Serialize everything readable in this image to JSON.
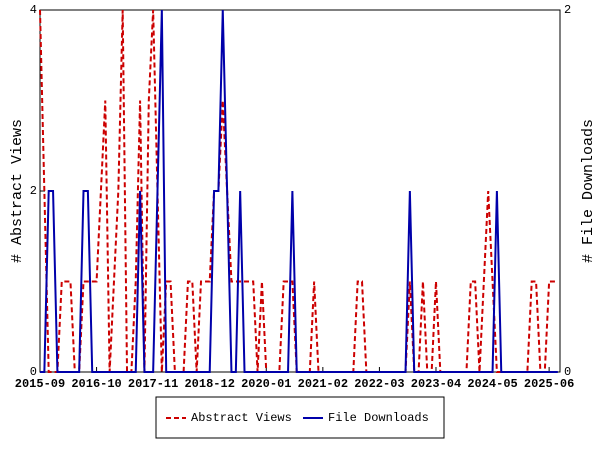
{
  "chart_data": {
    "type": "line",
    "y_label": "# Abstract Views",
    "y2_label": "# File Downloads",
    "categories": [
      "2015-09",
      null,
      null,
      null,
      null,
      null,
      null,
      null,
      null,
      null,
      null,
      null,
      null,
      "2016-10",
      null,
      null,
      null,
      null,
      null,
      null,
      null,
      null,
      null,
      null,
      null,
      null,
      "2017-11",
      null,
      null,
      null,
      null,
      null,
      null,
      null,
      null,
      null,
      null,
      null,
      null,
      "2018-12",
      null,
      null,
      null,
      null,
      null,
      null,
      null,
      null,
      null,
      null,
      null,
      null,
      "2020-01",
      null,
      null,
      null,
      null,
      null,
      null,
      null,
      null,
      null,
      null,
      null,
      null,
      "2021-02",
      null,
      null,
      null,
      null,
      null,
      null,
      null,
      null,
      null,
      null,
      null,
      null,
      "2022-03",
      null,
      null,
      null,
      null,
      null,
      null,
      null,
      null,
      null,
      null,
      null,
      null,
      "2023-04",
      null,
      null,
      null,
      null,
      null,
      null,
      null,
      null,
      null,
      null,
      null,
      null,
      "2024-05",
      null,
      null,
      null,
      null,
      null,
      null,
      null,
      null,
      null,
      null,
      null,
      null,
      "2025-06",
      null,
      null
    ],
    "series": [
      {
        "name": "Abstract Views",
        "color": "#cc0000",
        "dashed": true,
        "values": [
          4,
          2,
          0,
          0,
          0,
          1,
          1,
          1,
          0,
          0,
          1,
          1,
          1,
          1,
          2,
          3,
          0,
          1,
          2,
          4,
          0,
          0,
          1,
          3,
          0,
          3,
          4,
          2,
          0,
          1,
          1,
          0,
          0,
          0,
          1,
          1,
          0,
          1,
          1,
          1,
          2,
          2,
          3,
          2,
          1,
          1,
          1,
          1,
          1,
          1,
          0,
          1,
          0,
          0,
          0,
          0,
          1,
          1,
          1,
          0,
          0,
          0,
          0,
          1,
          0,
          0,
          0,
          0,
          0,
          0,
          0,
          0,
          0,
          1,
          1,
          0,
          0,
          0,
          0,
          0,
          0,
          0,
          0,
          0,
          0,
          1,
          0,
          0,
          1,
          0,
          0,
          1,
          0,
          0,
          0,
          0,
          0,
          0,
          0,
          1,
          1,
          0,
          1,
          2,
          1,
          0,
          0,
          0,
          0,
          0,
          0,
          0,
          0,
          1,
          1,
          0,
          0,
          1,
          1,
          1
        ]
      },
      {
        "name": "File Downloads",
        "color": "#0000aa",
        "dashed": false,
        "axis": "y2",
        "values": [
          0,
          0,
          1,
          1,
          0,
          0,
          0,
          0,
          0,
          0,
          1,
          1,
          0,
          0,
          0,
          0,
          0,
          0,
          0,
          0,
          0,
          0,
          0,
          1,
          0,
          0,
          0,
          1,
          2,
          0,
          0,
          0,
          0,
          0,
          0,
          0,
          0,
          0,
          0,
          0,
          1,
          1,
          2,
          1,
          0,
          0,
          1,
          0,
          0,
          0,
          0,
          0,
          0,
          0,
          0,
          0,
          0,
          0,
          1,
          0,
          0,
          0,
          0,
          0,
          0,
          0,
          0,
          0,
          0,
          0,
          0,
          0,
          0,
          0,
          0,
          0,
          0,
          0,
          0,
          0,
          0,
          0,
          0,
          0,
          0,
          1,
          0,
          0,
          0,
          0,
          0,
          0,
          0,
          0,
          0,
          0,
          0,
          0,
          0,
          0,
          0,
          0,
          0,
          0,
          0,
          1,
          0,
          0,
          0,
          0,
          0,
          0,
          0,
          0,
          0,
          0,
          0,
          0,
          0,
          0
        ]
      }
    ],
    "ylim": [
      0,
      4
    ],
    "yticks": [
      0,
      2,
      4
    ],
    "y2lim": [
      0,
      2
    ],
    "y2ticks": [
      0,
      2
    ],
    "grid": false,
    "legend": "bottom"
  }
}
